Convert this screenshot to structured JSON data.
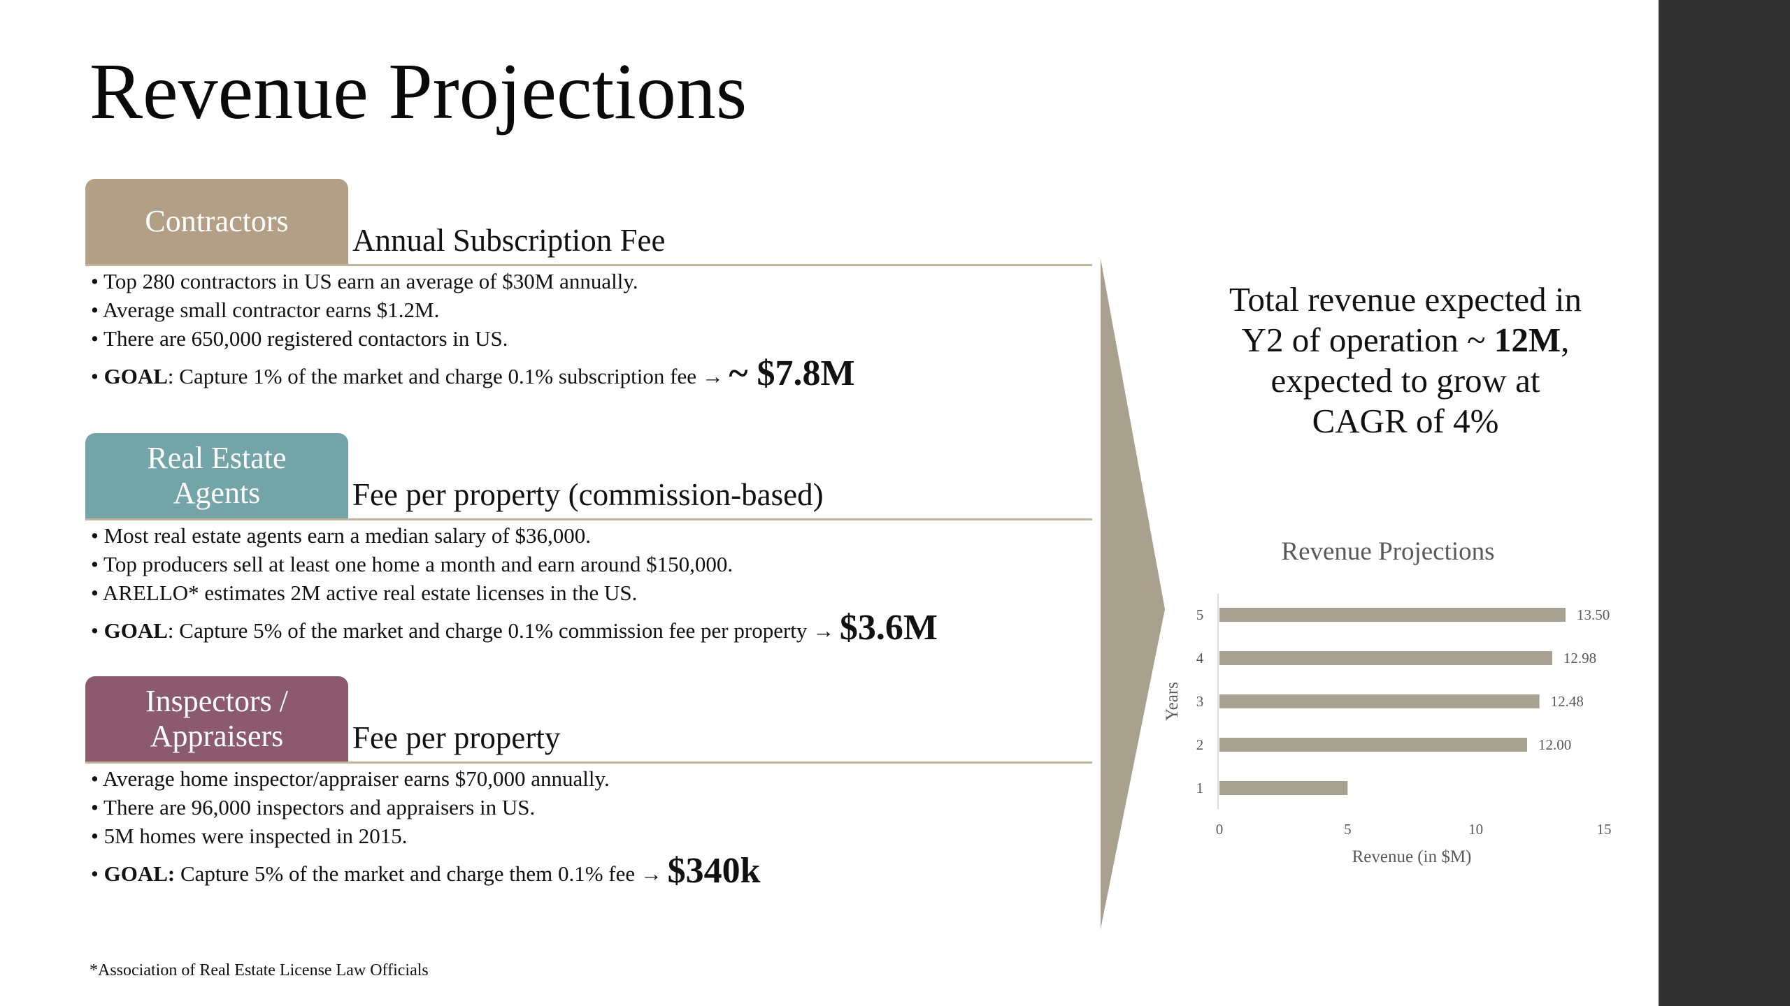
{
  "title": "Revenue Projections",
  "colors": {
    "contractors": "#b39f85",
    "agents": "#73a4a7",
    "inspectors": "#8b5a6f",
    "rule": "#c2b49a",
    "bar": "#a7a291",
    "right_bar": "#323232"
  },
  "sections": [
    {
      "tab_label": "Contractors",
      "header": "Annual Subscription Fee",
      "bullets": [
        "Top 280 contractors in US earn an average of $30M annually.",
        "Average small contractor earns $1.2M.",
        "There are 650,000 registered contactors in US."
      ],
      "goal_label": "GOAL",
      "goal_text": ": Capture 1% of the market and charge 0.1% subscription fee → ",
      "goal_amount": "~ $7.8M"
    },
    {
      "tab_label": "Real Estate\nAgents",
      "header": "Fee per property (commission-based)",
      "bullets": [
        "Most real estate agents earn a median salary of $36,000.",
        "Top producers sell at least one home a month and earn around $150,000.",
        "ARELLO* estimates 2M active real estate licenses in the US."
      ],
      "goal_label": "GOAL",
      "goal_text": ": Capture 5% of the market and charge 0.1% commission fee per property → ",
      "goal_amount": "$3.6M"
    },
    {
      "tab_label": "Inspectors /\nAppraisers",
      "header": "Fee per property",
      "bullets": [
        "Average home inspector/appraiser earns $70,000 annually.",
        "There are 96,000 inspectors and appraisers in US.",
        "5M homes were inspected in 2015."
      ],
      "goal_label": "GOAL:",
      "goal_text": " Capture 5% of the market and charge them 0.1% fee → ",
      "goal_amount": "$340k"
    }
  ],
  "footnote": "*Association of Real Estate License Law Officials",
  "summary": {
    "text_1": "Total revenue expected in Y2 of operation ~ ",
    "bold": "12M",
    "text_2": ", expected to grow at CAGR of 4%"
  },
  "chart_data": {
    "type": "bar",
    "orientation": "horizontal",
    "title": "Revenue Projections",
    "xlabel": "Revenue (in $M)",
    "ylabel": "Years",
    "categories": [
      "1",
      "2",
      "3",
      "4",
      "5"
    ],
    "values": [
      5,
      12.0,
      12.48,
      12.98,
      13.5
    ],
    "data_labels": [
      "",
      "12.00",
      "12.48",
      "12.98",
      "13.50"
    ],
    "xlim": [
      0,
      15
    ],
    "xticks": [
      "0",
      "5",
      "10",
      "15"
    ],
    "grid": false,
    "legend": "none"
  }
}
